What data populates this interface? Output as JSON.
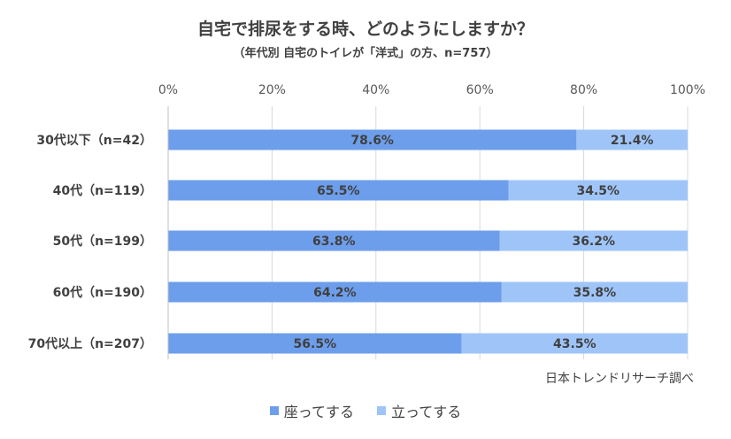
{
  "chart_data": {
    "type": "bar",
    "orientation": "horizontal",
    "stacked": true,
    "title": "自宅で排尿をする時、どのようにしますか？",
    "subtitle": "（年代別 自宅のトイレが「洋式」の方、n=757）",
    "categories": [
      "30代以下（n=42）",
      "40代（n=119）",
      "50代（n=199）",
      "60代（n=190）",
      "70代以上（n=207）"
    ],
    "series": [
      {
        "name": "座ってする",
        "color": "#6d9eeb",
        "values": [
          78.6,
          65.5,
          63.8,
          64.2,
          56.5
        ],
        "labels": [
          "78.6%",
          "65.5%",
          "63.8%",
          "64.2%",
          "56.5%"
        ]
      },
      {
        "name": "立ってする",
        "color": "#9fc5f8",
        "values": [
          21.4,
          34.5,
          36.2,
          35.8,
          43.5
        ],
        "labels": [
          "21.4%",
          "34.5%",
          "36.2%",
          "35.8%",
          "43.5%"
        ]
      }
    ],
    "xlim": [
      0,
      100
    ],
    "xticks": [
      0,
      20,
      40,
      60,
      80,
      100
    ],
    "xtick_labels": [
      "0%",
      "20%",
      "40%",
      "60%",
      "80%",
      "100%"
    ],
    "legend_position": "bottom",
    "grid": true,
    "source": "日本トレンドリサーチ調べ"
  }
}
